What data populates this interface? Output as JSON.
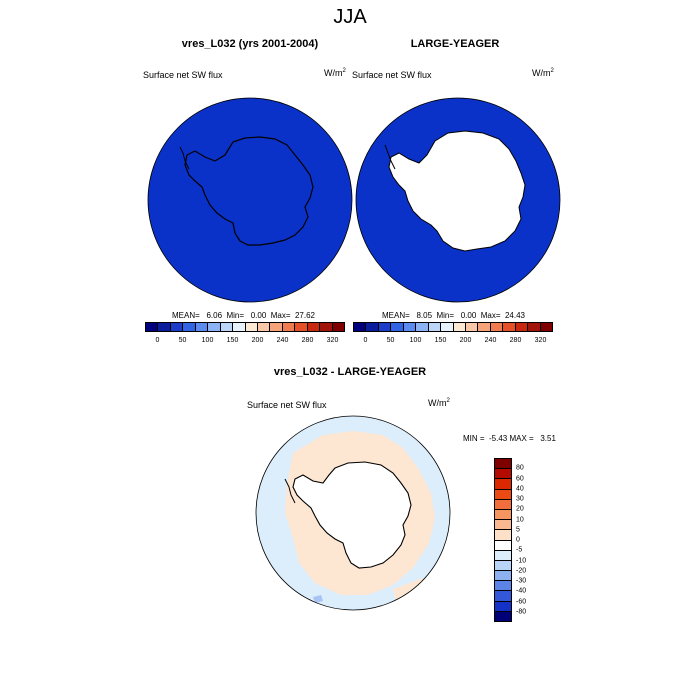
{
  "title": "JJA",
  "top_maps": [
    {
      "title": "vres_L032 (yrs 2001-2004)",
      "var_label": "Surface net SW flux",
      "units_base": "W/m",
      "units_exp": "2",
      "stats": "MEAN=   6.06  Min=   0.00  Max=  27.62",
      "fill_color": "#0a32c8"
    },
    {
      "title": "LARGE-YEAGER",
      "var_label": "Surface net SW flux",
      "units_base": "W/m",
      "units_exp": "2",
      "stats": "MEAN=   8.05  Min=   0.00  Max=  24.43",
      "fill_color": "#0a32c8"
    }
  ],
  "top_colorbar": {
    "colors": [
      "#00007f",
      "#0a1e9b",
      "#1e3cc8",
      "#3264e6",
      "#5a8cf0",
      "#8cb4f5",
      "#bcd6fa",
      "#e8f2fd",
      "#fde8d4",
      "#fac8a6",
      "#f5a37a",
      "#f07b50",
      "#e65028",
      "#c8280f",
      "#a0140a",
      "#7f0000"
    ],
    "ticks": [
      "0",
      "50",
      "100",
      "150",
      "200",
      "240",
      "280",
      "320"
    ]
  },
  "diff_map": {
    "title": "vres_L032 - LARGE-YEAGER",
    "var_label": "Surface net SW flux",
    "units_base": "W/m",
    "units_exp": "2",
    "stats": "MIN =  -5.43 MAX =   3.51"
  },
  "diff_colorbar": {
    "colors": [
      "#800000",
      "#b40a00",
      "#dc2800",
      "#ec4a14",
      "#f26e3c",
      "#f5955f",
      "#f8b890",
      "#fde0c8",
      "#ffffff",
      "#dceefc",
      "#b8d4f8",
      "#8cb0f0",
      "#5c84e6",
      "#3258d8",
      "#1432c8",
      "#000078"
    ],
    "ticks": [
      "80",
      "60",
      "40",
      "30",
      "20",
      "10",
      "5",
      "0",
      "-5",
      "-10",
      "-20",
      "-30",
      "-40",
      "-60",
      "-80"
    ]
  },
  "map_colors": {
    "ocean_blue": "#0a32c8",
    "land_white": "#ffffff",
    "diff_neg": "#dceefc",
    "diff_pos": "#fde6d2",
    "diff_patch": "#a8c4f4"
  }
}
